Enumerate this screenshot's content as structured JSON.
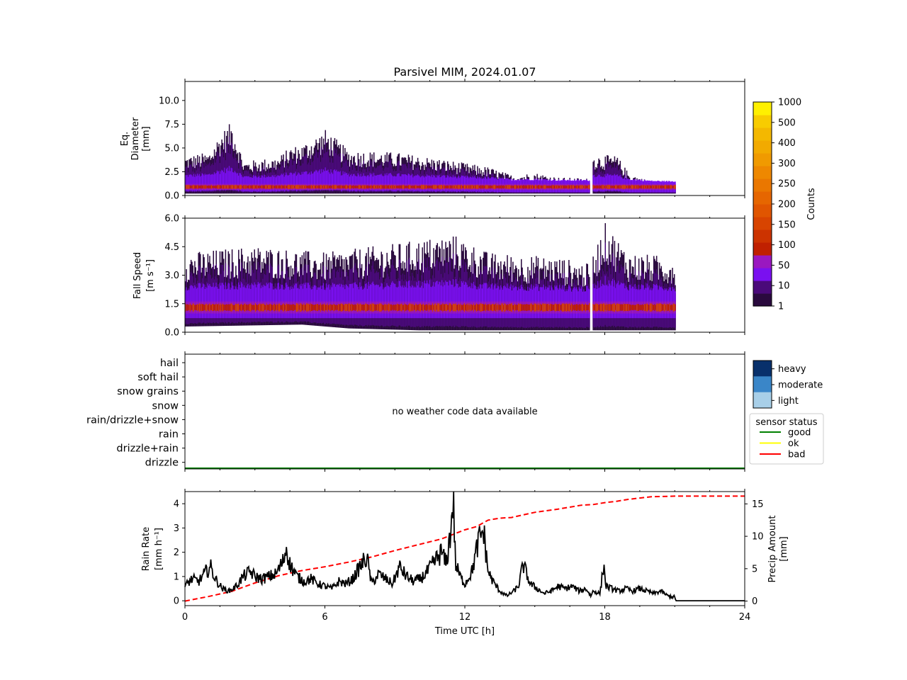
{
  "title": "Parsivel MIM, 2024.01.07",
  "x_axis": {
    "label": "Time UTC [h]",
    "range": [
      0,
      24
    ],
    "ticks": [
      0,
      6,
      12,
      18,
      24
    ]
  },
  "colorbar_counts": {
    "label": "Counts",
    "levels": [
      "1",
      "10",
      "50",
      "100",
      "150",
      "200",
      "250",
      "300",
      "400",
      "500",
      "1000"
    ],
    "colors": [
      "#2a0a3e",
      "#4a0a7a",
      "#7a10f0",
      "#9a18c0",
      "#c02000",
      "#cc3300",
      "#d84400",
      "#e05500",
      "#e66600",
      "#ea7700",
      "#ee8800",
      "#f09a00",
      "#f2aa00",
      "#f4b800",
      "#f8cc00",
      "#fff000"
    ]
  },
  "weather_colorbar": {
    "labels": [
      "heavy",
      "moderate",
      "light"
    ],
    "colors": [
      "#08306b",
      "#3a86c8",
      "#a8cfe8"
    ]
  },
  "legend": {
    "title": "sensor status",
    "items": [
      {
        "label": "good",
        "color": "#008000"
      },
      {
        "label": "ok",
        "color": "#ffff00"
      },
      {
        "label": "bad",
        "color": "#ff0000"
      }
    ]
  },
  "chart_data": [
    {
      "type": "heatmap",
      "panel": "diameter",
      "ylabel_lines": [
        "Eq.",
        "Diameter",
        "[mm]"
      ],
      "ylim": [
        0,
        12
      ],
      "yticks": [
        "0.0",
        "2.5",
        "5.0",
        "7.5",
        "10.0"
      ],
      "data_end_hour": 21.0,
      "gap_hours": [
        17.35,
        17.45
      ],
      "envelope_top": [
        [
          0,
          3.5
        ],
        [
          1,
          3.8
        ],
        [
          1.5,
          5.5
        ],
        [
          2,
          6.5
        ],
        [
          2.5,
          3.0
        ],
        [
          4,
          3.4
        ],
        [
          4.5,
          4.3
        ],
        [
          5,
          4.5
        ],
        [
          6,
          5.8
        ],
        [
          7,
          4.0
        ],
        [
          9,
          3.8
        ],
        [
          10,
          3.5
        ],
        [
          11,
          3.2
        ],
        [
          13,
          2.5
        ],
        [
          14,
          1.8
        ],
        [
          15,
          2.0
        ],
        [
          16,
          1.6
        ],
        [
          17.3,
          1.5
        ],
        [
          17.5,
          3.6
        ],
        [
          18.5,
          3.5
        ],
        [
          19,
          2.0
        ],
        [
          20,
          1.2
        ],
        [
          21,
          1.0
        ]
      ],
      "envelope_bottom": 0.2,
      "core_diameter_mm": 0.9
    },
    {
      "type": "heatmap",
      "panel": "fall_speed",
      "ylabel_lines": [
        "Fall Speed",
        "[m s⁻¹]"
      ],
      "ylim": [
        0,
        6
      ],
      "yticks": [
        "0.0",
        "1.5",
        "3.0",
        "4.5",
        "6.0"
      ],
      "data_end_hour": 21.0,
      "gap_hours": [
        17.35,
        17.45
      ],
      "envelope_top": [
        [
          0,
          3.5
        ],
        [
          3,
          3.8
        ],
        [
          6,
          3.5
        ],
        [
          9,
          3.9
        ],
        [
          11.5,
          4.3
        ],
        [
          13,
          3.5
        ],
        [
          16,
          3.3
        ],
        [
          17.3,
          3.0
        ],
        [
          18,
          4.8
        ],
        [
          19,
          3.5
        ],
        [
          21,
          3.3
        ]
      ],
      "envelope_bottom": [
        [
          0,
          0.3
        ],
        [
          5,
          0.4
        ],
        [
          7,
          0.2
        ],
        [
          10,
          0.1
        ],
        [
          14,
          0.1
        ],
        [
          17,
          0.1
        ],
        [
          21,
          0.1
        ]
      ],
      "core_speed_ms": 1.3
    },
    {
      "type": "table",
      "panel": "weather_code",
      "categories": [
        "hail",
        "soft hail",
        "snow grains",
        "snow",
        "rain/drizzle+snow",
        "rain",
        "drizzle+rain",
        "drizzle"
      ],
      "message": "no weather code data available",
      "sensor_status_line": "good"
    },
    {
      "type": "line",
      "panel": "rain",
      "ylabel_left": [
        "Rain Rate",
        "[mm h⁻¹]"
      ],
      "ylabel_right": [
        "Precip Amount",
        "[mm]"
      ],
      "ylim_left": [
        -0.2,
        4.5
      ],
      "ylim_right": [
        -0.7,
        16.9
      ],
      "yticks_left": [
        "0",
        "1",
        "2",
        "3",
        "4"
      ],
      "yticks_right": [
        "0",
        "5",
        "10",
        "15"
      ],
      "series": [
        {
          "axis": "left",
          "style": "solid",
          "color": "#000000",
          "x": [
            0,
            0.3,
            0.6,
            0.9,
            1.1,
            1.3,
            1.6,
            1.9,
            2.2,
            2.5,
            2.8,
            3.0,
            3.3,
            3.6,
            3.9,
            4.2,
            4.35,
            4.5,
            4.8,
            5.1,
            5.4,
            5.7,
            6.0,
            6.3,
            6.6,
            6.9,
            7.2,
            7.5,
            7.8,
            8.0,
            8.3,
            8.6,
            8.9,
            9.2,
            9.5,
            9.8,
            10.1,
            10.4,
            10.7,
            11.0,
            11.2,
            11.4,
            11.5,
            11.6,
            11.8,
            12.0,
            12.3,
            12.6,
            12.8,
            13.0,
            13.2,
            13.5,
            13.8,
            14.1,
            14.3,
            14.5,
            14.8,
            15.1,
            15.4,
            15.7,
            16.0,
            16.3,
            16.6,
            16.9,
            17.2,
            17.4,
            17.5,
            17.8,
            17.95,
            18.05,
            18.3,
            18.6,
            18.9,
            19.2,
            19.5,
            19.8,
            20.1,
            20.4,
            20.7,
            21.0,
            21.05,
            24
          ],
          "y": [
            0.6,
            0.9,
            0.8,
            1.2,
            1.4,
            0.9,
            0.5,
            0.4,
            0.6,
            1.0,
            1.2,
            1.0,
            0.9,
            1.0,
            1.1,
            1.6,
            2.2,
            1.5,
            1.0,
            0.8,
            0.9,
            0.7,
            0.6,
            0.5,
            0.8,
            0.7,
            0.9,
            1.4,
            1.8,
            0.7,
            1.1,
            0.9,
            0.7,
            1.4,
            1.0,
            0.8,
            0.9,
            1.2,
            1.6,
            2.0,
            1.5,
            2.9,
            4.3,
            1.5,
            1.0,
            0.7,
            1.2,
            2.5,
            2.9,
            1.2,
            0.8,
            0.4,
            0.2,
            0.4,
            0.6,
            1.5,
            0.7,
            0.5,
            0.3,
            0.4,
            0.6,
            0.5,
            0.6,
            0.4,
            0.5,
            0.2,
            0.4,
            0.3,
            1.5,
            0.6,
            0.5,
            0.4,
            0.5,
            0.4,
            0.5,
            0.4,
            0.3,
            0.4,
            0.2,
            0.15,
            0,
            0
          ]
        },
        {
          "axis": "right",
          "style": "dashed",
          "color": "#ff0000",
          "x": [
            0,
            1,
            2,
            3,
            4,
            5,
            6,
            7,
            8,
            9,
            10,
            11,
            12,
            12.5,
            13,
            13.5,
            14,
            14.5,
            15,
            16,
            17,
            17.5,
            18,
            18.5,
            19,
            19.5,
            20,
            20.5,
            21,
            24
          ],
          "y": [
            0,
            0.7,
            1.5,
            2.8,
            3.9,
            4.7,
            5.3,
            6.0,
            6.8,
            7.8,
            8.7,
            9.6,
            11.0,
            11.5,
            12.5,
            12.8,
            12.9,
            13.3,
            13.7,
            14.2,
            14.8,
            14.9,
            15.2,
            15.4,
            15.7,
            15.9,
            16.1,
            16.15,
            16.2,
            16.2
          ]
        }
      ]
    }
  ]
}
